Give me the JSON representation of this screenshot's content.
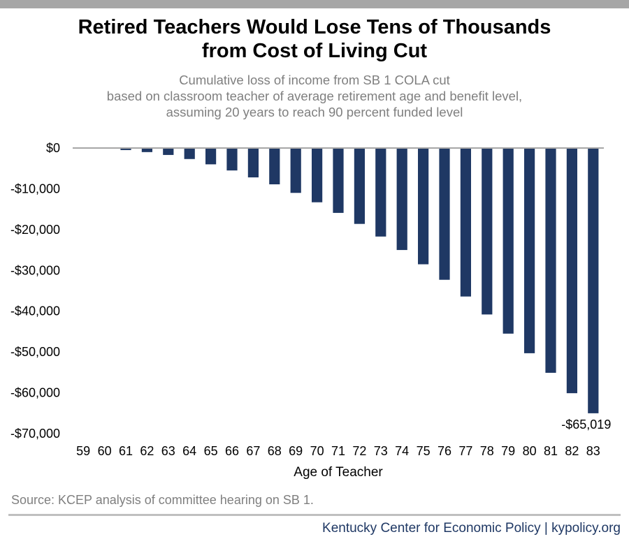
{
  "header": {
    "title_line1": "Retired Teachers Would Lose Tens of Thousands",
    "title_line2": "from Cost of Living Cut",
    "subtitle_line1": "Cumulative loss of income from SB 1 COLA cut",
    "subtitle_line2": "based on classroom teacher of average retirement age and benefit level,",
    "subtitle_line3": "assuming 20 years to reach 90 percent funded level"
  },
  "source": "Source: KCEP analysis of committee hearing on SB 1.",
  "footer": "Kentucky Center for Economic Policy | kypolicy.org",
  "colors": {
    "bar": "#1f3864",
    "rule": "#a6a6a6",
    "subtitle": "#7f7f7f",
    "footer": "#1f3864"
  },
  "chart_data": {
    "type": "bar",
    "categories": [
      "59",
      "60",
      "61",
      "62",
      "63",
      "64",
      "65",
      "66",
      "67",
      "68",
      "69",
      "70",
      "71",
      "72",
      "73",
      "74",
      "75",
      "76",
      "77",
      "78",
      "79",
      "80",
      "81",
      "82",
      "83"
    ],
    "values": [
      0,
      0,
      -500,
      -1000,
      -1700,
      -2700,
      -4000,
      -5500,
      -7200,
      -8900,
      -11000,
      -13300,
      -15900,
      -18600,
      -21700,
      -25000,
      -28500,
      -32300,
      -36400,
      -40800,
      -45500,
      -50300,
      -55100,
      -60100,
      -65019
    ],
    "xlabel": "Age of Teacher",
    "ylabel": "",
    "ylim": [
      -70000,
      0
    ],
    "yticks": [
      0,
      -10000,
      -20000,
      -30000,
      -40000,
      -50000,
      -60000,
      -70000
    ],
    "ytick_labels": [
      "$0",
      "-$10,000",
      "-$20,000",
      "-$30,000",
      "-$40,000",
      "-$50,000",
      "-$60,000",
      "-$70,000"
    ],
    "annotations": [
      {
        "category": "83",
        "text": "-$65,019"
      }
    ],
    "grid": false,
    "legend": "none"
  }
}
